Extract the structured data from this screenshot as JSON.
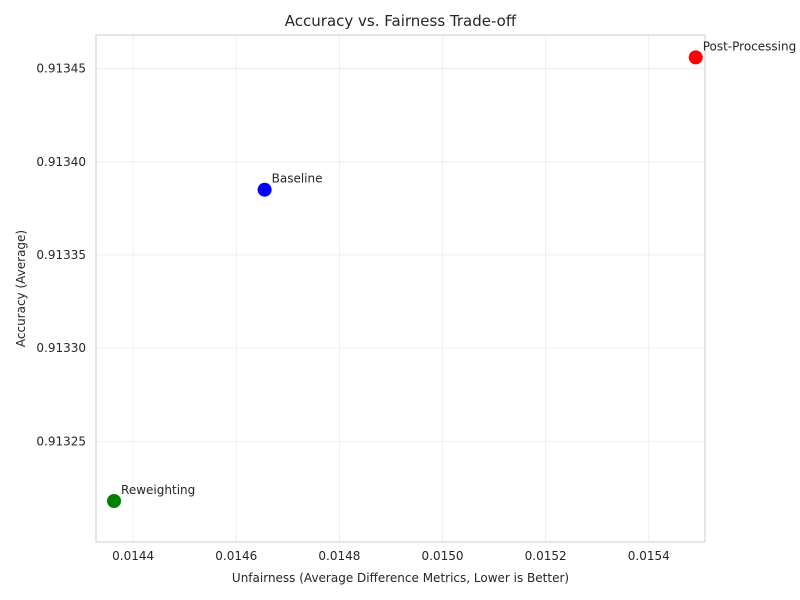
{
  "chart_data": {
    "type": "scatter",
    "title": "Accuracy vs. Fairness Trade-off",
    "xlabel": "Unfairness (Average Difference Metrics, Lower is Better)",
    "ylabel": "Accuracy (Average)",
    "xlim": [
      0.014328,
      0.015509
    ],
    "ylim": [
      0.913196,
      0.913468
    ],
    "xticks": [
      "0.0144",
      "0.0146",
      "0.0148",
      "0.0150",
      "0.0152",
      "0.0154"
    ],
    "yticks": [
      "0.91325",
      "0.91330",
      "0.91335",
      "0.91340",
      "0.91345"
    ],
    "grid": true,
    "points": [
      {
        "label": "Baseline",
        "x": 0.014655,
        "y": 0.913385,
        "color": "#0000ff"
      },
      {
        "label": "Reweighting",
        "x": 0.014363,
        "y": 0.913218,
        "color": "#008000"
      },
      {
        "label": "Post-Processing",
        "x": 0.015491,
        "y": 0.913456,
        "color": "#ff0000"
      }
    ]
  }
}
